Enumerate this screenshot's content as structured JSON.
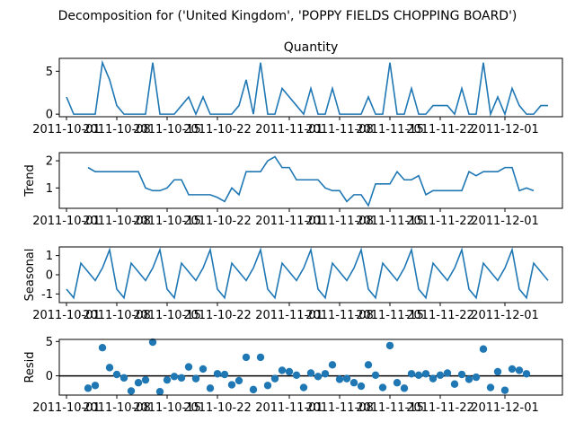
{
  "figure": {
    "title": "Decomposition for ('United Kingdom', 'POPPY FIELDS CHOPPING BOARD')"
  },
  "chart_data": [
    {
      "type": "line",
      "panel": "observed",
      "title": "Quantity",
      "ylabel": "",
      "ylim": [
        -0.3,
        6.5
      ],
      "yticks": [
        0,
        5
      ],
      "x_start": "2011-10-01",
      "x_end": "2011-12-09",
      "xlim": [
        "2011-09-30",
        "2011-12-09"
      ],
      "xticks": [
        "2011-10-01",
        "2011-10-08",
        "2011-10-15",
        "2011-10-22",
        "2011-11-01",
        "2011-11-08",
        "2011-11-15",
        "2011-11-22",
        "2011-12-01"
      ],
      "color": "#1f77b4",
      "values": [
        2,
        0,
        0,
        0,
        0,
        6,
        4,
        1,
        0,
        0,
        0,
        0,
        6,
        0,
        0,
        0,
        1,
        2,
        0,
        2,
        0,
        0,
        0,
        0,
        1,
        4,
        0,
        6,
        0,
        0,
        3,
        2,
        1,
        0,
        3,
        0,
        0,
        3,
        0,
        0,
        0,
        0,
        2,
        0,
        0,
        6,
        0,
        0,
        3,
        0,
        0,
        1,
        1,
        1,
        0,
        3,
        0,
        0,
        6,
        0,
        2,
        0,
        3,
        1,
        0,
        0,
        1,
        1
      ]
    },
    {
      "type": "line",
      "panel": "trend",
      "title": "",
      "ylabel": "Trend",
      "ylim": [
        0.25,
        2.3
      ],
      "yticks": [
        1,
        2
      ],
      "color": "#1f77b4",
      "x_first": "2011-10-04",
      "values": [
        1.75,
        1.6,
        1.6,
        1.6,
        1.6,
        1.6,
        1.6,
        1.6,
        1.0,
        0.9,
        0.9,
        1.0,
        1.3,
        1.3,
        0.75,
        0.75,
        0.75,
        0.75,
        0.65,
        0.5,
        1.0,
        0.75,
        1.6,
        1.6,
        1.6,
        2.0,
        2.15,
        1.75,
        1.75,
        1.3,
        1.3,
        1.3,
        1.3,
        1.0,
        0.9,
        0.9,
        0.5,
        0.75,
        0.75,
        0.35,
        1.15,
        1.15,
        1.15,
        1.6,
        1.3,
        1.3,
        1.45,
        0.75,
        0.9,
        0.9,
        0.9,
        0.9,
        0.9,
        1.6,
        1.45,
        1.6,
        1.6,
        1.6,
        1.75,
        1.75,
        0.9,
        1.0,
        0.9
      ]
    },
    {
      "type": "line",
      "panel": "seasonal",
      "title": "",
      "ylabel": "Seasonal",
      "ylim": [
        -1.45,
        1.45
      ],
      "yticks": [
        -1,
        0,
        1
      ],
      "color": "#1f77b4",
      "period_pattern": [
        -0.75,
        -1.2,
        0.6,
        0.15,
        -0.3,
        0.35,
        1.3
      ],
      "values": [
        -0.75,
        -1.2,
        0.6,
        0.15,
        -0.3,
        0.35,
        1.3,
        -0.75,
        -1.2,
        0.6,
        0.15,
        -0.3,
        0.35,
        1.3,
        -0.75,
        -1.2,
        0.6,
        0.15,
        -0.3,
        0.35,
        1.3,
        -0.75,
        -1.2,
        0.6,
        0.15,
        -0.3,
        0.35,
        1.3,
        -0.75,
        -1.2,
        0.6,
        0.15,
        -0.3,
        0.35,
        1.3,
        -0.75,
        -1.2,
        0.6,
        0.15,
        -0.3,
        0.35,
        1.3,
        -0.75,
        -1.2,
        0.6,
        0.15,
        -0.3,
        0.35,
        1.3,
        -0.75,
        -1.2,
        0.6,
        0.15,
        -0.3,
        0.35,
        1.3,
        -0.75,
        -1.2,
        0.6,
        0.15,
        -0.3,
        0.35,
        1.3,
        -0.75,
        -1.2,
        0.6,
        0.15,
        -0.3
      ]
    },
    {
      "type": "scatter",
      "panel": "resid",
      "title": "",
      "ylabel": "Resid",
      "ylim": [
        -2.8,
        5.3
      ],
      "yticks": [
        0,
        5
      ],
      "color": "#1f77b4",
      "zero_line": true,
      "x_first": "2011-10-04",
      "values": [
        -1.8,
        -1.4,
        4.1,
        1.2,
        0.2,
        -0.3,
        -2.2,
        -1.0,
        -0.6,
        4.9,
        -2.3,
        -0.6,
        -0.1,
        -0.3,
        1.3,
        -0.4,
        1.0,
        -1.8,
        0.3,
        0.2,
        -1.3,
        -0.7,
        2.7,
        -2.0,
        2.7,
        -1.4,
        -0.4,
        0.8,
        0.6,
        0.1,
        -1.7,
        0.4,
        -0.1,
        0.3,
        1.6,
        -0.5,
        -0.4,
        -1.0,
        -1.5,
        1.6,
        0.1,
        -1.7,
        4.4,
        -1.0,
        -1.8,
        0.3,
        0.1,
        0.3,
        -0.4,
        0.1,
        0.4,
        -1.2,
        0.2,
        -0.5,
        -0.2,
        3.9,
        -1.7,
        0.6,
        -2.1,
        1.0,
        0.8,
        0.3
      ]
    }
  ]
}
